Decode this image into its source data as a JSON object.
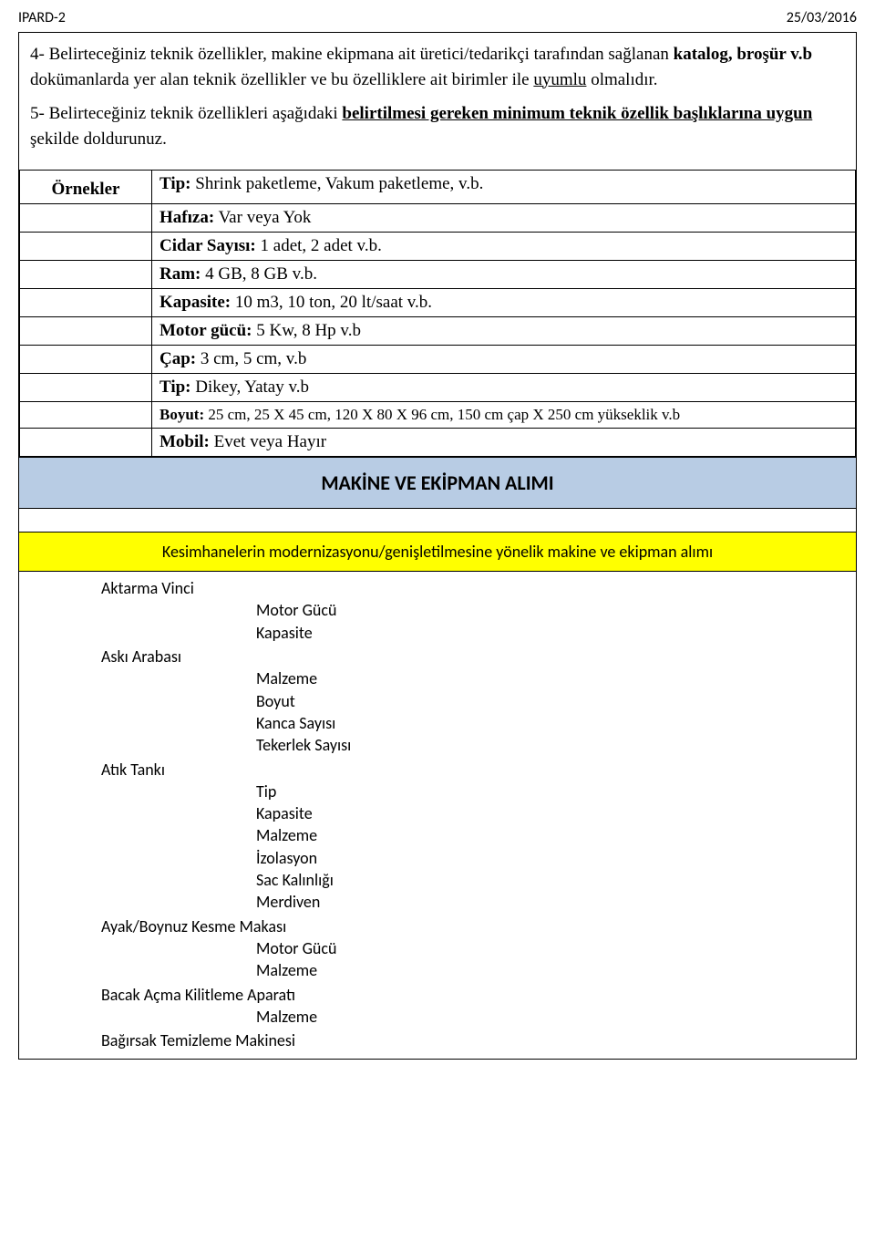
{
  "header": {
    "left": "IPARD-2",
    "right": "25/03/2016"
  },
  "intro": {
    "p1_prefix": "4- Belirteceğiniz teknik özellikler, makine ekipmana ait üretici/tedarikçi tarafından sağlanan ",
    "p1_bold": "katalog, broşür v.b",
    "p1_mid": " dokümanlarda yer alan teknik özellikler ve bu özelliklere ait birimler ile ",
    "p1_underline": "uyumlu",
    "p1_suffix": " olmalıdır.",
    "p2_prefix": "5- Belirteceğiniz teknik özellikleri aşağıdaki ",
    "p2_underline1": "belirtilmesi gereken minimum teknik özellik başlıklarına uygun",
    "p2_suffix": " şekilde doldurunuz."
  },
  "examples": {
    "header": "Örnekler",
    "rows": [
      {
        "label": "Tip:",
        "value": " Shrink paketleme, Vakum paketleme, v.b."
      },
      {
        "label": "Hafıza:",
        "value": " Var veya Yok"
      },
      {
        "label": "Cidar Sayısı:",
        "value": " 1 adet, 2 adet v.b."
      },
      {
        "label": "Ram:",
        "value": " 4 GB, 8 GB v.b."
      },
      {
        "label": "Kapasite:",
        "value": " 10 m3, 10 ton, 20 lt/saat v.b."
      },
      {
        "label": "Motor gücü:",
        "value": " 5 Kw, 8 Hp v.b"
      },
      {
        "label": "Çap:",
        "value": " 3 cm, 5 cm, v.b"
      },
      {
        "label": "Tip:",
        "value": " Dikey, Yatay v.b"
      },
      {
        "label": "Boyut:",
        "value": " 25 cm, 25 X 45 cm, 120 X 80 X 96 cm, 150 cm çap X 250 cm yükseklik v.b"
      },
      {
        "label": "Mobil:",
        "value": " Evet veya Hayır"
      }
    ]
  },
  "section_title": "MAKİNE VE EKİPMAN ALIMI",
  "yellow_title": "Kesimhanelerin modernizasyonu/genişletilmesine yönelik makine ve ekipman alımı",
  "equipment": [
    {
      "name": "Aktarma Vinci",
      "attrs": [
        "Motor Gücü",
        "Kapasite"
      ]
    },
    {
      "name": "Askı Arabası",
      "attrs": [
        "Malzeme",
        "Boyut",
        "Kanca Sayısı",
        "Tekerlek Sayısı"
      ]
    },
    {
      "name": "Atık Tankı",
      "attrs": [
        "Tip",
        "Kapasite",
        "Malzeme",
        "İzolasyon",
        "Sac Kalınlığı",
        "Merdiven"
      ]
    },
    {
      "name": "Ayak/Boynuz Kesme Makası",
      "attrs": [
        "Motor Gücü",
        "Malzeme"
      ]
    },
    {
      "name": "Bacak Açma Kilitleme Aparatı",
      "attrs": [
        "Malzeme"
      ]
    },
    {
      "name": "Bağırsak Temizleme Makinesi",
      "attrs": []
    }
  ],
  "colors": {
    "blue_bg": "#b8cce4",
    "yellow_bg": "#ffff00",
    "text": "#000000",
    "page_bg": "#ffffff",
    "border": "#000000"
  }
}
